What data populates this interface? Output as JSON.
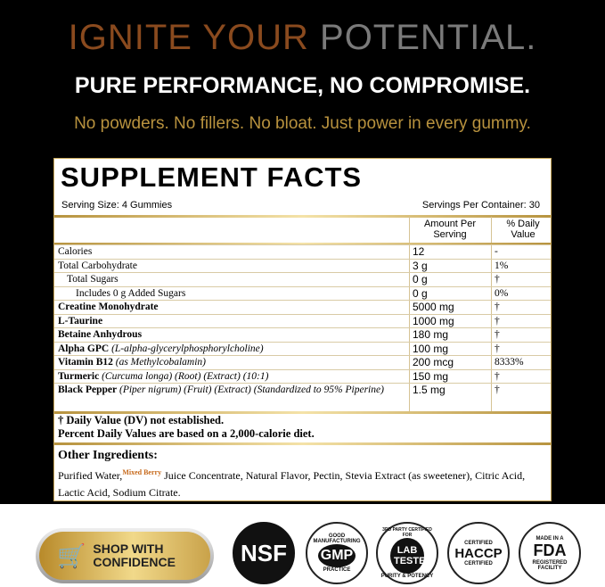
{
  "header": {
    "line1a": "IGNITE YOUR",
    "line1b": "POTENTIAL.",
    "line2": "PURE PERFORMANCE, NO COMPROMISE.",
    "line3": "No powders. No fillers. No bloat. Just power in every gummy."
  },
  "facts": {
    "title": "SUPPLEMENT FACTS",
    "serving_size": "Serving Size: 4 Gummies",
    "servings_per": "Servings Per Container: 30",
    "col_amount": "Amount Per Serving",
    "col_dv": "% Daily Value",
    "rows": [
      {
        "name": "Calories",
        "detail": "",
        "amount": "12",
        "dv": "-"
      },
      {
        "name": "Total Carbohydrate",
        "detail": "",
        "amount": "3 g",
        "dv": "1%"
      },
      {
        "name": "Total Sugars",
        "detail": "",
        "amount": "0 g",
        "dv": "†"
      },
      {
        "name": "Includes 0 g Added Sugars",
        "detail": "",
        "amount": "0 g",
        "dv": "0%"
      },
      {
        "name": "Creatine Monohydrate",
        "detail": "",
        "amount": "5000 mg",
        "dv": "†"
      },
      {
        "name": "L-Taurine",
        "detail": "",
        "amount": "1000 mg",
        "dv": "†"
      },
      {
        "name": "Betaine Anhydrous",
        "detail": "",
        "amount": "180 mg",
        "dv": "†"
      },
      {
        "name": "Alpha GPC",
        "detail": "(L-alpha-glycerylphosphorylcholine)",
        "amount": "100 mg",
        "dv": "†"
      },
      {
        "name": "Vitamin B12",
        "detail": "(as Methylcobalamin)",
        "amount": "200 mcg",
        "dv": "8333%"
      },
      {
        "name": "Turmeric",
        "detail": "(Curcuma longa) (Root) (Extract) (10:1)",
        "amount": "150 mg",
        "dv": "†"
      },
      {
        "name": "Black Pepper",
        "detail": "(Piper nigrum) (Fruit) (Extract) (Standardized to 95% Piperine)",
        "amount": "1.5 mg",
        "dv": "†"
      }
    ],
    "foot1": "† Daily Value (DV) not established.",
    "foot2": "Percent Daily Values are based on a 2,000-calorie diet.",
    "other_title": "Other Ingredients:",
    "other_a": "Purified Water,",
    "other_flavor": "Mixed Berry",
    "other_b": " Juice Concentrate, Natural Flavor, Pectin, Stevia Extract (as sweetener), Citric Acid, Lactic Acid, Sodium Citrate."
  },
  "badges": {
    "shop": "SHOP WITH CONFIDENCE",
    "nsf": "NSF",
    "gmp_top": "GOOD MANUFACTURING",
    "gmp": "GMP",
    "gmp_sub": "CERTIFIED",
    "gmp_bottom": "PRACTICE",
    "lab_top": "3RD PARTY CERTIFIED FOR",
    "lab": "LAB TESTED",
    "lab_bottom": "PURITY & POTENCY",
    "haccp_top": "CERTIFIED",
    "haccp": "HACCP",
    "haccp_bottom": "CERTIFIED",
    "fda_top": "MADE IN A",
    "fda": "FDA",
    "fda_bottom": "REGISTERED FACILITY"
  },
  "colors": {
    "brown": "#8a4a1e",
    "gray": "#7a7a7a",
    "gold": "#b8923e"
  }
}
